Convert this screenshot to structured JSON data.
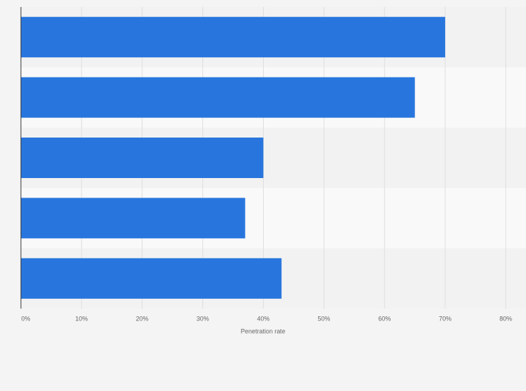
{
  "chart_data": {
    "type": "bar",
    "orientation": "horizontal",
    "x_label": "Penetration rate",
    "categories": [
      null,
      null,
      null,
      null,
      null
    ],
    "values": [
      70,
      65,
      40,
      37,
      43
    ],
    "color": "#2876dd",
    "xlim": [
      0,
      80
    ],
    "xticks": [
      {
        "value": 0,
        "label": "0%"
      },
      {
        "value": 10,
        "label": "10%"
      },
      {
        "value": 20,
        "label": "20%"
      },
      {
        "value": 30,
        "label": "30%"
      },
      {
        "value": 40,
        "label": "40%"
      },
      {
        "value": 50,
        "label": "50%"
      },
      {
        "value": 60,
        "label": "60%"
      },
      {
        "value": 70,
        "label": "70%"
      },
      {
        "value": 80,
        "label": "80%"
      }
    ],
    "grid": true
  }
}
